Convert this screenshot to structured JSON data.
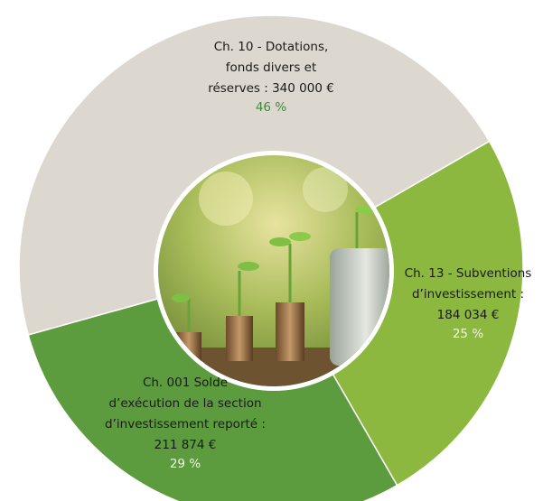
{
  "chart_data": {
    "type": "donut",
    "categories": [
      [
        "Ch. 10 - Dotations,",
        "fonds divers et",
        "réserves : 340 000 €"
      ],
      [
        "Ch. 13 - Subventions",
        "d’investissement :",
        "184 034 €"
      ],
      [
        "Ch. 001 Solde",
        "d’exécution de la section",
        "d’investissement reporté :",
        "211 874 €"
      ]
    ],
    "values": [
      46,
      25,
      29
    ],
    "value_labels": [
      "46 %",
      "25 %",
      "29 %"
    ],
    "colors": [
      "#ddd8cf",
      "#8cb83f",
      "#5d9b3f"
    ],
    "value_label_colors": [
      "#3d8a3a",
      "#eef6e0",
      "#eef6e0"
    ]
  }
}
